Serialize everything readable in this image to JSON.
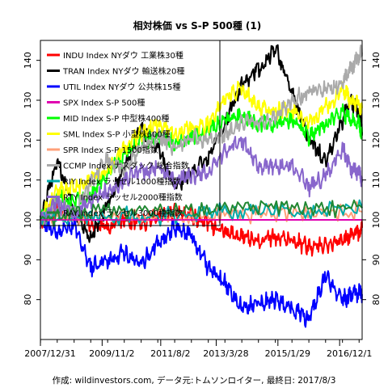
{
  "chart_data": {
    "type": "line",
    "title": "相対株価 vs S-P 500種 (1)",
    "caption": "作成: wildinvestors.com, データ元:トムソンロイター, 最終日: 2017/8/3",
    "x_tick_labels": [
      "2007/12/31",
      "2009/11/2",
      "2011/8/2",
      "2013/3/28",
      "2015/1/29",
      "2016/12/1"
    ],
    "x_range": [
      "2007-12-31",
      "2017-08-03"
    ],
    "ylim": [
      70,
      145
    ],
    "y_ticks": [
      80,
      90,
      100,
      110,
      120,
      130,
      140
    ],
    "y_axes": "left and right",
    "reference_line": {
      "y": 100,
      "color": "#e000b0"
    },
    "legend": {
      "position": "top-left",
      "boxed": true
    },
    "series": [
      {
        "name": "INDU Index NYダウ 工業株30種",
        "color": "#ff0000",
        "x": [
          "2007-12-31",
          "2008-06-30",
          "2008-12-31",
          "2009-06-30",
          "2009-12-31",
          "2010-06-30",
          "2010-12-31",
          "2011-06-30",
          "2011-12-31",
          "2012-06-30",
          "2012-12-31",
          "2013-06-30",
          "2013-12-31",
          "2014-06-30",
          "2014-12-31",
          "2015-06-30",
          "2015-12-31",
          "2016-06-30",
          "2016-12-31",
          "2017-03-31",
          "2017-06-30",
          "2017-08-03"
        ],
        "values": [
          100,
          103,
          102,
          99,
          98,
          100,
          99,
          101,
          102,
          101,
          99,
          97,
          96,
          95,
          96,
          95,
          93,
          94,
          95,
          96,
          97,
          98
        ]
      },
      {
        "name": "TRAN Index NYダウ 輸送株20種",
        "color": "#000000",
        "x": [
          "2007-12-31",
          "2008-06-30",
          "2008-12-31",
          "2009-06-30",
          "2009-12-31",
          "2010-06-30",
          "2010-12-31",
          "2011-06-30",
          "2011-12-31",
          "2012-06-30",
          "2012-12-31",
          "2013-06-30",
          "2013-12-31",
          "2014-06-30",
          "2014-12-31",
          "2015-06-30",
          "2015-12-31",
          "2016-06-30",
          "2016-12-31",
          "2017-03-31",
          "2017-06-30",
          "2017-08-03"
        ],
        "values": [
          100,
          115,
          103,
          95,
          104,
          113,
          123,
          118,
          108,
          112,
          116,
          124,
          134,
          138,
          143,
          132,
          120,
          115,
          125,
          130,
          127,
          122
        ]
      },
      {
        "name": "UTIL Index NYダウ 公共株15種",
        "color": "#0000ff",
        "x": [
          "2007-12-31",
          "2008-06-30",
          "2008-12-31",
          "2009-06-30",
          "2009-12-31",
          "2010-06-30",
          "2010-12-31",
          "2011-06-30",
          "2011-12-31",
          "2012-06-30",
          "2012-12-31",
          "2013-06-30",
          "2013-12-31",
          "2014-06-30",
          "2014-12-31",
          "2015-06-30",
          "2015-12-31",
          "2016-06-30",
          "2016-12-31",
          "2017-03-31",
          "2017-06-30",
          "2017-08-03"
        ],
        "values": [
          100,
          97,
          99,
          88,
          90,
          92,
          89,
          94,
          98,
          96,
          88,
          84,
          78,
          79,
          80,
          78,
          75,
          86,
          80,
          81,
          82,
          81
        ]
      },
      {
        "name": "SPX Index S-P 500種",
        "color": "#e000b0",
        "x": [
          "2007-12-31",
          "2017-08-03"
        ],
        "values": [
          100,
          100
        ]
      },
      {
        "name": "MID Index S-P 中型株400種",
        "color": "#00ff00",
        "x": [
          "2007-12-31",
          "2008-06-30",
          "2008-12-31",
          "2009-06-30",
          "2009-12-31",
          "2010-06-30",
          "2010-12-31",
          "2011-06-30",
          "2011-12-31",
          "2012-06-30",
          "2012-12-31",
          "2013-06-30",
          "2013-12-31",
          "2014-06-30",
          "2014-12-31",
          "2015-06-30",
          "2015-12-31",
          "2016-06-30",
          "2016-12-31",
          "2017-03-31",
          "2017-06-30",
          "2017-08-03"
        ],
        "values": [
          100,
          106,
          104,
          106,
          112,
          116,
          120,
          121,
          119,
          121,
          122,
          125,
          126,
          124,
          124,
          125,
          121,
          124,
          127,
          125,
          124,
          122
        ]
      },
      {
        "name": "SML Index S-P 小型株600種",
        "color": "#ffff00",
        "x": [
          "2007-12-31",
          "2008-06-30",
          "2008-12-31",
          "2009-06-30",
          "2009-12-31",
          "2010-06-30",
          "2010-12-31",
          "2011-06-30",
          "2011-12-31",
          "2012-06-30",
          "2012-12-31",
          "2013-06-30",
          "2013-12-31",
          "2014-06-30",
          "2014-12-31",
          "2015-06-30",
          "2015-12-31",
          "2016-06-30",
          "2016-12-31",
          "2017-03-31",
          "2017-06-30",
          "2017-08-03"
        ],
        "values": [
          100,
          107,
          108,
          110,
          113,
          118,
          122,
          124,
          122,
          123,
          124,
          130,
          133,
          128,
          127,
          128,
          124,
          128,
          133,
          130,
          129,
          128
        ]
      },
      {
        "name": "SPR Index S-P 1500指数",
        "color": "#ffa07a",
        "x": [
          "2007-12-31",
          "2009-06-30",
          "2011-06-30",
          "2013-06-30",
          "2015-06-30",
          "2017-08-03"
        ],
        "values": [
          100,
          101,
          101,
          101,
          102,
          102
        ]
      },
      {
        "name": "CCMP Index ナスダック 総合指数",
        "color": "#aaaaaa",
        "x": [
          "2007-12-31",
          "2008-06-30",
          "2008-12-31",
          "2009-06-30",
          "2009-12-31",
          "2010-06-30",
          "2010-12-31",
          "2011-06-30",
          "2011-12-31",
          "2012-06-30",
          "2012-12-31",
          "2013-06-30",
          "2013-12-31",
          "2014-06-30",
          "2014-12-31",
          "2015-06-30",
          "2015-12-31",
          "2016-06-30",
          "2016-12-31",
          "2017-03-31",
          "2017-06-30",
          "2017-08-03"
        ],
        "values": [
          100,
          104,
          102,
          109,
          115,
          113,
          118,
          121,
          118,
          121,
          120,
          121,
          125,
          124,
          126,
          130,
          132,
          133,
          134,
          138,
          141,
          142
        ]
      },
      {
        "name": "RIY Index ラッセル1000種指数",
        "color": "#00aaaa",
        "x": [
          "2007-12-31",
          "2009-06-30",
          "2011-06-30",
          "2013-06-30",
          "2015-06-30",
          "2017-08-03"
        ],
        "values": [
          100,
          101,
          101,
          102,
          102,
          103
        ]
      },
      {
        "name": "RTY Index ラッセル2000種指数",
        "color": "#8866cc",
        "x": [
          "2007-12-31",
          "2008-06-30",
          "2008-12-31",
          "2009-06-30",
          "2009-12-31",
          "2010-06-30",
          "2010-12-31",
          "2011-06-30",
          "2011-12-31",
          "2012-06-30",
          "2012-12-31",
          "2013-06-30",
          "2013-12-31",
          "2014-06-30",
          "2014-12-31",
          "2015-06-30",
          "2015-12-31",
          "2016-06-30",
          "2016-12-31",
          "2017-03-31",
          "2017-06-30",
          "2017-08-03"
        ],
        "values": [
          100,
          104,
          101,
          105,
          107,
          110,
          112,
          113,
          110,
          111,
          112,
          117,
          120,
          113,
          113,
          114,
          108,
          111,
          118,
          113,
          112,
          110
        ]
      },
      {
        "name": "RAY Index ラッセル3000種指数",
        "color": "#228833",
        "x": [
          "2007-12-31",
          "2009-06-30",
          "2011-06-30",
          "2013-06-30",
          "2015-06-30",
          "2017-08-03"
        ],
        "values": [
          100,
          102,
          102,
          103,
          103,
          103
        ]
      }
    ]
  }
}
